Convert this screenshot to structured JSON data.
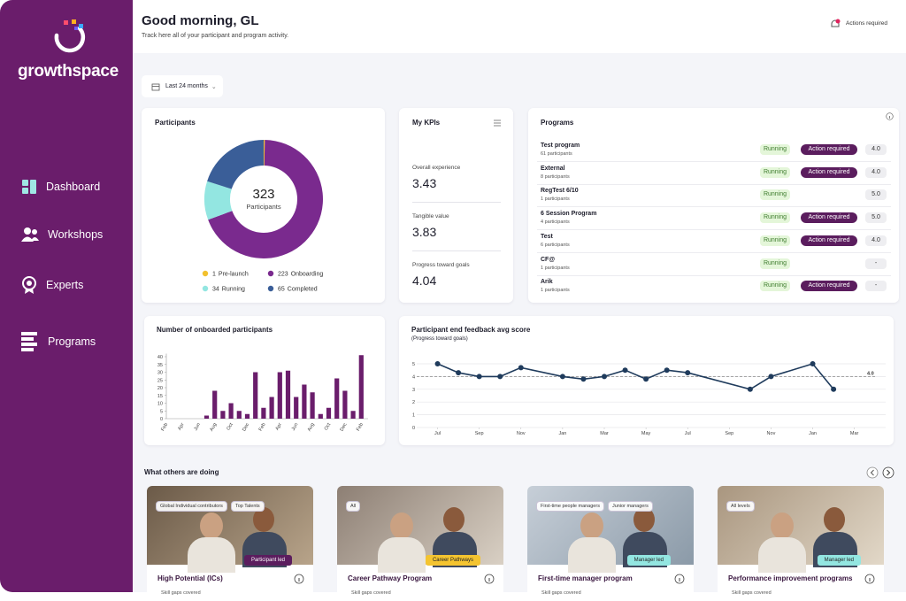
{
  "sidebar": {
    "brand": "growthspace",
    "nav": [
      "Dashboard",
      "Workshops",
      "Experts",
      "Programs"
    ]
  },
  "header": {
    "title": "Good morning, GL",
    "subtitle": "Track here all of your participant and program activity.",
    "actions": "Actions required"
  },
  "filter": "Last 24 months",
  "kpis": {
    "title": "My KPIs",
    "items": [
      {
        "label": "Overall experience",
        "value": "3.43"
      },
      {
        "label": "Tangible value",
        "value": "3.83"
      },
      {
        "label": "Progress toward goals",
        "value": "4.04"
      }
    ]
  },
  "programs": {
    "title": "Programs",
    "rows": [
      {
        "name": "Test program",
        "participants": "61 participants",
        "status": "Running",
        "action": "Action required",
        "score": "4.0"
      },
      {
        "name": "External",
        "participants": "8 participants",
        "status": "Running",
        "action": "Action required",
        "score": "4.0"
      },
      {
        "name": "RegTest 6/10",
        "participants": "1 participants",
        "status": "Running",
        "score": "5.0"
      },
      {
        "name": "6 Session Program",
        "participants": "4 participants",
        "status": "Running",
        "action": "Action required",
        "score": "5.0"
      },
      {
        "name": "Test",
        "participants": "6 participants",
        "status": "Running",
        "action": "Action required",
        "score": "4.0"
      },
      {
        "name": "CF@",
        "participants": "1 participants",
        "status": "Running",
        "score": "-"
      },
      {
        "name": "Arik",
        "participants": "1 participants",
        "status": "Running",
        "action": "Action required",
        "score": "-"
      }
    ]
  },
  "chart_data": [
    {
      "type": "pie",
      "title": "Participants",
      "center_value": 323,
      "center_label": "Participants",
      "categories": [
        "Pre-launch",
        "Onboarding",
        "Running",
        "Completed"
      ],
      "values": [
        1,
        223,
        34,
        65
      ],
      "colors": [
        "#f2c12e",
        "#7a2a8e",
        "#93e6e1",
        "#3a5e98"
      ]
    },
    {
      "type": "bar",
      "title": "Number of onboarded participants",
      "categories": [
        "Feb",
        null,
        "Apr",
        null,
        "Jun",
        null,
        "Aug",
        null,
        "Oct",
        null,
        "Dec",
        null,
        "Feb",
        null,
        "Apr",
        null,
        "Jun",
        null,
        "Aug",
        null,
        "Oct",
        null,
        "Dec",
        null,
        "Feb"
      ],
      "values": [
        0,
        0,
        0,
        0,
        0,
        2,
        18,
        5,
        10,
        5,
        3,
        30,
        7,
        14,
        30,
        31,
        14,
        22,
        17,
        3,
        7,
        26,
        18,
        5,
        41
      ],
      "color": "#6a1d6b",
      "ylim": [
        0,
        42
      ],
      "yticks": [
        0,
        5,
        10,
        15,
        20,
        25,
        30,
        35,
        40
      ]
    },
    {
      "type": "line",
      "title": "Participant end feedback avg score",
      "subtitle": "(Progress toward goals)",
      "x": [
        0,
        1,
        2,
        3,
        4,
        6,
        7,
        8,
        9,
        10,
        11,
        12,
        15,
        16,
        18,
        19
      ],
      "values": [
        5,
        4.3,
        4,
        4,
        4.7,
        4,
        3.8,
        4,
        4.5,
        3.8,
        4.5,
        4.3,
        3,
        4,
        5,
        3
      ],
      "color": "#1f3b5c",
      "xlim": [
        -1,
        21.5
      ],
      "ylim": [
        0,
        5
      ],
      "yticks": [
        0,
        1,
        2,
        3,
        4,
        5
      ],
      "xticks": [
        {
          "value": 0,
          "label": "Jul"
        },
        {
          "value": 2,
          "label": "Sep"
        },
        {
          "value": 4,
          "label": "Nov"
        },
        {
          "value": 6,
          "label": "Jan"
        },
        {
          "value": 8,
          "label": "Mar"
        },
        {
          "value": 10,
          "label": "May"
        },
        {
          "value": 12,
          "label": "Jul"
        },
        {
          "value": 14,
          "label": "Sep"
        },
        {
          "value": 16,
          "label": "Nov"
        },
        {
          "value": 18,
          "label": "Jan"
        },
        {
          "value": 20,
          "label": "Mar"
        }
      ],
      "reference": {
        "value": 4,
        "label": "4.0"
      },
      "grid": true
    }
  ],
  "others": {
    "title": "What others are doing",
    "cards": [
      {
        "tags": [
          "Global Individual contributors",
          "Top Talents"
        ],
        "badge": "Participant led",
        "title": "High Potential (ICs)",
        "note": "Skill gaps covered"
      },
      {
        "tags": [
          "All"
        ],
        "badge": "Career Pathways",
        "title": "Career Pathway Program",
        "note": "Skill gaps covered"
      },
      {
        "tags": [
          "First-time people managers",
          "Junior managers"
        ],
        "badge": "Manager led",
        "title": "First-time manager program",
        "note": "Skill gaps covered"
      },
      {
        "tags": [
          "All levels"
        ],
        "badge": "Manager led",
        "title": "Performance improvement programs",
        "note": "Skill gaps covered"
      }
    ]
  }
}
